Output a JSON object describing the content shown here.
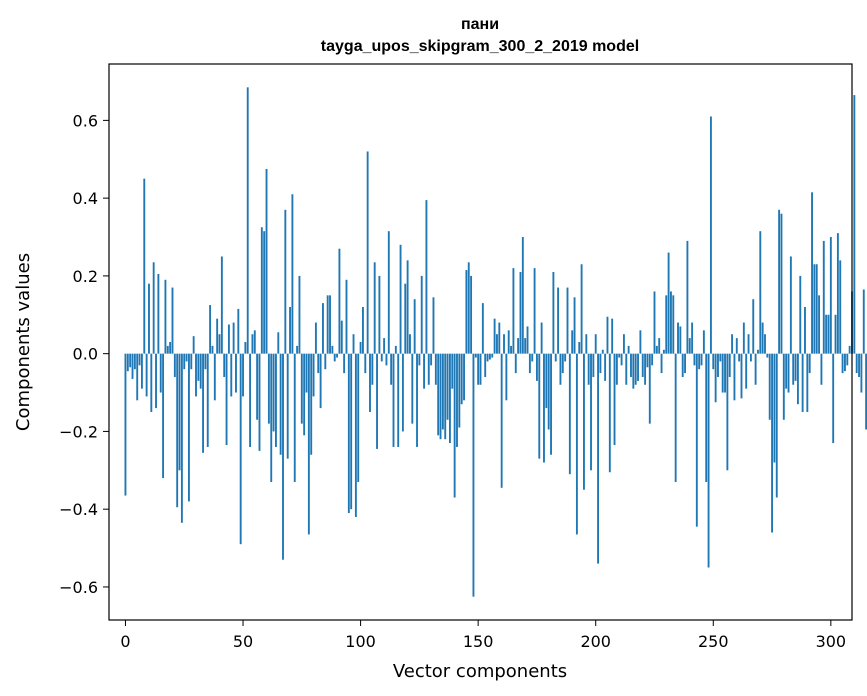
{
  "chart_data": {
    "type": "bar",
    "title": "пани",
    "subtitle": "tayga_upos_skipgram_300_2_2019 model",
    "xlabel": "Vector components",
    "ylabel": "Components values",
    "xlim": [
      -7,
      309
    ],
    "ylim": [
      -0.685,
      0.745
    ],
    "xticks": [
      0,
      50,
      100,
      150,
      200,
      250,
      300
    ],
    "yticks": [
      -0.6,
      -0.4,
      -0.2,
      0.0,
      0.2,
      0.4,
      0.6
    ],
    "ytick_labels": [
      "−0.6",
      "−0.4",
      "−0.2",
      "0.0",
      "0.2",
      "0.4",
      "0.6"
    ],
    "color": "#1f77b4",
    "values": [
      -0.365,
      -0.045,
      -0.035,
      -0.065,
      -0.04,
      -0.12,
      -0.03,
      -0.09,
      0.45,
      -0.11,
      0.18,
      -0.15,
      0.235,
      -0.14,
      0.205,
      -0.1,
      -0.32,
      0.19,
      0.02,
      0.03,
      0.17,
      -0.06,
      -0.395,
      -0.3,
      -0.435,
      -0.04,
      -0.02,
      -0.38,
      -0.04,
      0.045,
      -0.11,
      -0.07,
      -0.09,
      -0.255,
      -0.04,
      -0.24,
      0.125,
      0.02,
      -0.12,
      0.09,
      0.05,
      0.25,
      -0.06,
      -0.235,
      0.075,
      -0.11,
      0.08,
      -0.1,
      0.115,
      -0.49,
      -0.11,
      0.03,
      0.685,
      -0.24,
      0.05,
      0.06,
      -0.17,
      -0.25,
      0.325,
      0.315,
      0.475,
      -0.18,
      -0.33,
      -0.2,
      -0.24,
      0.055,
      -0.26,
      -0.53,
      0.37,
      -0.27,
      0.12,
      0.41,
      -0.33,
      0.02,
      0.2,
      -0.18,
      -0.21,
      -0.1,
      -0.465,
      -0.26,
      -0.11,
      0.08,
      -0.05,
      -0.14,
      0.13,
      -0.04,
      0.15,
      0.15,
      0.02,
      -0.02,
      -0.01,
      0.27,
      0.085,
      -0.05,
      0.19,
      -0.41,
      -0.4,
      0.05,
      -0.42,
      -0.33,
      0.03,
      0.12,
      -0.05,
      0.52,
      -0.15,
      -0.08,
      0.235,
      -0.245,
      0.2,
      -0.02,
      0.04,
      -0.03,
      0.315,
      -0.08,
      -0.24,
      0.02,
      -0.24,
      0.28,
      -0.2,
      0.18,
      0.24,
      0.05,
      -0.18,
      0.14,
      -0.24,
      -0.03,
      0.2,
      -0.09,
      0.395,
      -0.08,
      -0.03,
      0.145,
      -0.08,
      -0.21,
      -0.22,
      -0.195,
      -0.22,
      -0.17,
      -0.23,
      -0.09,
      -0.37,
      -0.24,
      -0.19,
      -0.13,
      -0.12,
      0.215,
      0.235,
      0.2,
      -0.625,
      -0.01,
      -0.08,
      -0.08,
      0.13,
      -0.06,
      -0.02,
      -0.015,
      -0.01,
      0.09,
      0.05,
      0.08,
      -0.345,
      0.05,
      -0.12,
      0.06,
      0.02,
      0.22,
      -0.05,
      0.04,
      0.21,
      0.3,
      0.04,
      0.07,
      -0.05,
      -0.02,
      0.22,
      -0.07,
      -0.27,
      0.08,
      -0.28,
      -0.14,
      -0.195,
      -0.26,
      0.21,
      -0.02,
      0.17,
      -0.08,
      -0.05,
      -0.02,
      0.17,
      -0.31,
      0.06,
      0.145,
      -0.465,
      0.03,
      0.23,
      -0.35,
      0.05,
      -0.08,
      -0.3,
      -0.06,
      0.05,
      -0.54,
      -0.05,
      0.01,
      -0.07,
      0.095,
      -0.305,
      0.09,
      -0.235,
      -0.08,
      -0.01,
      -0.03,
      0.05,
      -0.08,
      0.02,
      -0.06,
      -0.09,
      -0.08,
      -0.07,
      0.06,
      -0.06,
      -0.08,
      -0.035,
      -0.18,
      -0.03,
      0.16,
      0.02,
      0.04,
      -0.05,
      0.01,
      0.15,
      0.26,
      0.16,
      0.15,
      -0.33,
      0.08,
      0.07,
      -0.06,
      -0.05,
      0.29,
      0.04,
      0.08,
      -0.03,
      -0.445,
      -0.04,
      -0.03,
      0.06,
      -0.33,
      -0.55,
      0.61,
      -0.04,
      -0.125,
      -0.06,
      -0.02,
      -0.1,
      -0.1,
      -0.3,
      -0.06,
      0.05,
      -0.12,
      0.04,
      -0.02,
      -0.115,
      0.08,
      -0.09,
      0.05,
      -0.02,
      0.14,
      -0.08,
      0.01,
      0.315,
      0.08,
      0.05,
      -0.01,
      -0.17,
      -0.46,
      -0.28,
      -0.37,
      0.37,
      0.36,
      -0.17,
      -0.09,
      -0.1,
      0.25,
      -0.08,
      -0.07,
      -0.13,
      0.2,
      -0.15,
      0.12,
      -0.15,
      -0.05,
      0.415,
      0.23,
      0.23,
      0.15,
      -0.08,
      0.29,
      0.1,
      0.1,
      0.3,
      -0.23,
      0.1,
      0.31,
      0.24,
      -0.05,
      -0.045,
      -0.03,
      0.02,
      0.16,
      0.665,
      -0.05,
      -0.06,
      -0.1,
      0.165,
      -0.195
    ]
  }
}
